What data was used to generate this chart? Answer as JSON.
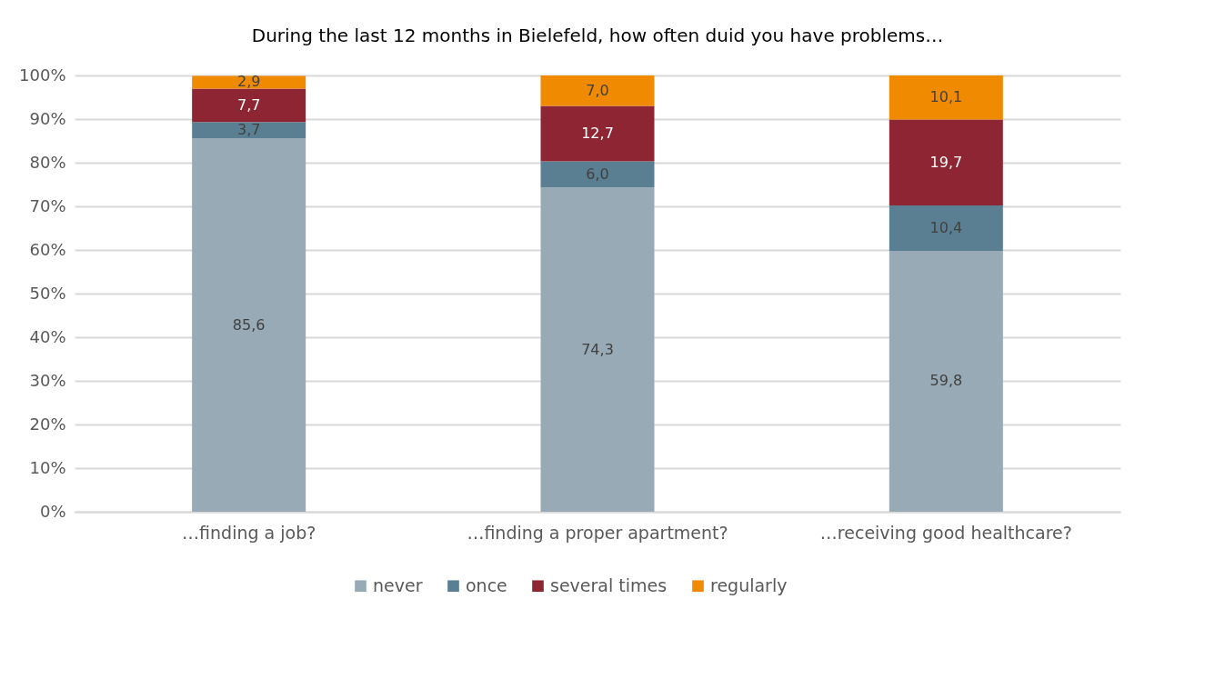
{
  "chart_data": {
    "type": "bar",
    "stacked": true,
    "title": "During the last 12 months in Bielefeld, how often duid you have problems…",
    "categories": [
      "…finding a job?",
      "…finding a proper apartment?",
      "…receiving good healthcare?"
    ],
    "series": [
      {
        "name": "never",
        "color": "#97aab6",
        "values": [
          85.6,
          74.3,
          59.8
        ],
        "value_labels": [
          "85,6",
          "74,3",
          "59,8"
        ]
      },
      {
        "name": "once",
        "color": "#5b7f92",
        "values": [
          3.7,
          6.0,
          10.4
        ],
        "value_labels": [
          "3,7",
          "6,0",
          "10,4"
        ]
      },
      {
        "name": "several times",
        "color": "#8e2532",
        "values": [
          7.7,
          12.7,
          19.7
        ],
        "value_labels": [
          "7,7",
          "12,7",
          "19,7"
        ]
      },
      {
        "name": "regularly",
        "color": "#f08a00",
        "values": [
          2.9,
          7.0,
          10.1
        ],
        "value_labels": [
          "2,9",
          "7,0",
          "10,1"
        ]
      }
    ],
    "ylim": [
      0,
      100
    ],
    "yticks": [
      {
        "value": 0,
        "label": "0%"
      },
      {
        "value": 10,
        "label": "10%"
      },
      {
        "value": 20,
        "label": "20%"
      },
      {
        "value": 30,
        "label": "30%"
      },
      {
        "value": 40,
        "label": "40%"
      },
      {
        "value": 50,
        "label": "50%"
      },
      {
        "value": 60,
        "label": "60%"
      },
      {
        "value": 70,
        "label": "70%"
      },
      {
        "value": 80,
        "label": "80%"
      },
      {
        "value": 90,
        "label": "90%"
      },
      {
        "value": 100,
        "label": "100%"
      }
    ],
    "grid": "y",
    "legend": "bottom"
  }
}
